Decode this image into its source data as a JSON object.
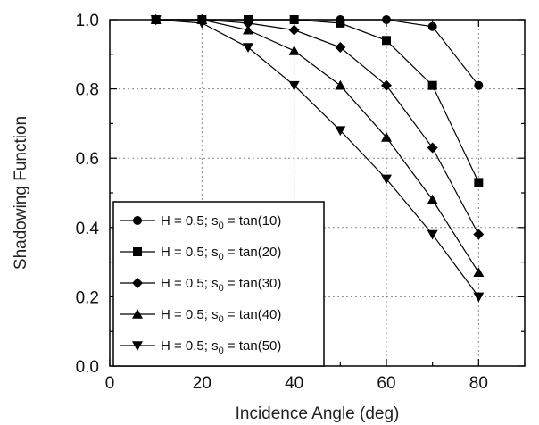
{
  "chart_data": {
    "type": "line",
    "xlabel": "Incidence Angle (deg)",
    "ylabel": "Shadowing Function",
    "xlim": [
      0,
      90
    ],
    "ylim": [
      0,
      1.0
    ],
    "xticks": [
      0,
      20,
      40,
      60,
      80
    ],
    "xtick_labels": [
      "0",
      "20",
      "40",
      "60",
      "80"
    ],
    "yticks": [
      0,
      0.2,
      0.4,
      0.6,
      0.8,
      1.0
    ],
    "ytick_labels": [
      "0.0",
      "0.2",
      "0.4",
      "0.6",
      "0.8",
      "1.0"
    ],
    "grid": true,
    "legend_position": "bottom-left",
    "x": [
      10,
      20,
      30,
      40,
      50,
      60,
      70,
      80
    ],
    "series": [
      {
        "label_main": "H = 0.5; s",
        "label_sub": "0",
        "label_tail": " = tan(10)",
        "marker": "circle",
        "values": [
          1.0,
          1.0,
          1.0,
          1.0,
          1.0,
          1.0,
          0.98,
          0.81
        ]
      },
      {
        "label_main": "H = 0.5; s",
        "label_sub": "0",
        "label_tail": " = tan(20)",
        "marker": "square",
        "values": [
          1.0,
          1.0,
          1.0,
          1.0,
          0.99,
          0.94,
          0.81,
          0.53
        ]
      },
      {
        "label_main": "H = 0.5; s",
        "label_sub": "0",
        "label_tail": " = tan(30)",
        "marker": "diamond",
        "values": [
          1.0,
          1.0,
          0.99,
          0.97,
          0.92,
          0.81,
          0.63,
          0.38
        ]
      },
      {
        "label_main": "H = 0.5; s",
        "label_sub": "0",
        "label_tail": " = tan(40)",
        "marker": "triangle-up",
        "values": [
          1.0,
          1.0,
          0.97,
          0.91,
          0.81,
          0.66,
          0.48,
          0.27
        ]
      },
      {
        "label_main": "H = 0.5; s",
        "label_sub": "0",
        "label_tail": " = tan(50)",
        "marker": "triangle-down",
        "values": [
          1.0,
          0.99,
          0.92,
          0.81,
          0.68,
          0.54,
          0.38,
          0.2
        ]
      }
    ]
  }
}
